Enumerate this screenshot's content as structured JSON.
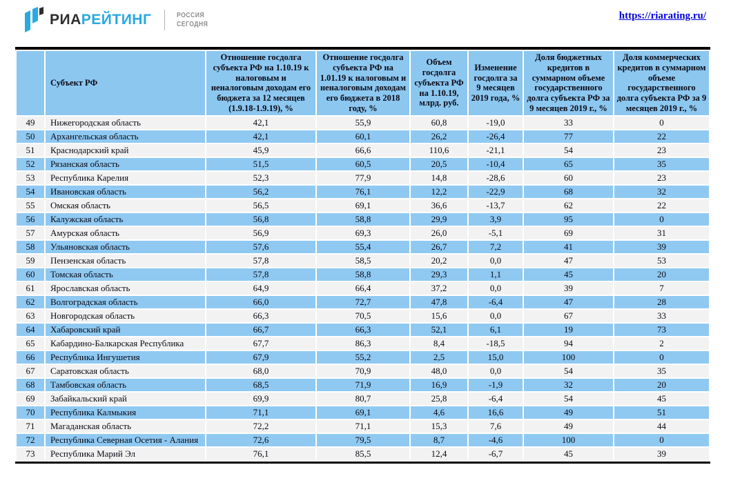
{
  "page": {
    "link": "https://riarating.ru/"
  },
  "logo": {
    "brand_prefix": "РИА",
    "brand_suffix": "РЕЙТИНГ",
    "agency_line1": "РОССИЯ",
    "agency_line2": "СЕГОДНЯ"
  },
  "colors": {
    "header_bg": "#8cc7f0",
    "row_even_bg": "#8fc9f2",
    "row_odd_bg": "#f2f2f2",
    "logo_blue": "#29a9e0",
    "logo_dark": "#2e2e2e",
    "agency_gray": "#8c8c8c",
    "link_blue": "#0000dd",
    "text_dark": "#0a0a14"
  },
  "table": {
    "columns": [
      "",
      "Субъект РФ",
      "Отношение госдолга субъекта РФ на 1.10.19 к налоговым и неналоговым доходам его бюджета за 12 месяцев (1.9.18-1.9.19), %",
      "Отношение госдолга субъекта РФ на 1.01.19 к налоговым и неналоговым доходам его бюджета в 2018 году, %",
      "Объем госдолга субъекта РФ на 1.10.19, млрд. руб.",
      "Изменение госдолга за 9 месяцев 2019 года, %",
      "Доля бюджетных кредитов в суммарном объеме государственного долга субъекта РФ за 9 месяцев 2019 г., %",
      "Доля коммерческих кредитов в суммарном объеме государственного долга субъекта РФ за 9 месяцев 2019 г., %"
    ],
    "rows": [
      [
        "49",
        "Нижегородская область",
        "42,1",
        "55,9",
        "60,8",
        "-19,0",
        "33",
        "0"
      ],
      [
        "50",
        "Архангельская область",
        "42,1",
        "60,1",
        "26,2",
        "-26,4",
        "77",
        "22"
      ],
      [
        "51",
        "Краснодарский край",
        "45,9",
        "66,6",
        "110,6",
        "-21,1",
        "54",
        "23"
      ],
      [
        "52",
        "Рязанская область",
        "51,5",
        "60,5",
        "20,5",
        "-10,4",
        "65",
        "35"
      ],
      [
        "53",
        "Республика Карелия",
        "52,3",
        "77,9",
        "14,8",
        "-28,6",
        "60",
        "23"
      ],
      [
        "54",
        "Ивановская область",
        "56,2",
        "76,1",
        "12,2",
        "-22,9",
        "68",
        "32"
      ],
      [
        "55",
        "Омская область",
        "56,5",
        "69,1",
        "36,6",
        "-13,7",
        "62",
        "22"
      ],
      [
        "56",
        "Калужская область",
        "56,8",
        "58,8",
        "29,9",
        "3,9",
        "95",
        "0"
      ],
      [
        "57",
        "Амурская область",
        "56,9",
        "69,3",
        "26,0",
        "-5,1",
        "69",
        "31"
      ],
      [
        "58",
        "Ульяновская область",
        "57,6",
        "55,4",
        "26,7",
        "7,2",
        "41",
        "39"
      ],
      [
        "59",
        "Пензенская область",
        "57,8",
        "58,5",
        "20,2",
        "0,0",
        "47",
        "53"
      ],
      [
        "60",
        "Томская область",
        "57,8",
        "58,8",
        "29,3",
        "1,1",
        "45",
        "20"
      ],
      [
        "61",
        "Ярославская область",
        "64,9",
        "66,4",
        "37,2",
        "0,0",
        "39",
        "7"
      ],
      [
        "62",
        "Волгоградская область",
        "66,0",
        "72,7",
        "47,8",
        "-6,4",
        "47",
        "28"
      ],
      [
        "63",
        "Новгородская область",
        "66,3",
        "70,5",
        "15,6",
        "0,0",
        "67",
        "33"
      ],
      [
        "64",
        "Хабаровский край",
        "66,7",
        "66,3",
        "52,1",
        "6,1",
        "19",
        "73"
      ],
      [
        "65",
        "Кабардино-Балкарская Республика",
        "67,7",
        "86,3",
        "8,4",
        "-18,5",
        "94",
        "2"
      ],
      [
        "66",
        "Республика Ингушетия",
        "67,9",
        "55,2",
        "2,5",
        "15,0",
        "100",
        "0"
      ],
      [
        "67",
        "Саратовская область",
        "68,0",
        "70,9",
        "48,0",
        "0,0",
        "54",
        "35"
      ],
      [
        "68",
        "Тамбовская область",
        "68,5",
        "71,9",
        "16,9",
        "-1,9",
        "32",
        "20"
      ],
      [
        "69",
        "Забайкальский край",
        "69,9",
        "80,7",
        "25,8",
        "-6,4",
        "54",
        "45"
      ],
      [
        "70",
        "Республика Калмыкия",
        "71,1",
        "69,1",
        "4,6",
        "16,6",
        "49",
        "51"
      ],
      [
        "71",
        "Магаданская область",
        "72,2",
        "71,1",
        "15,3",
        "7,6",
        "49",
        "44"
      ],
      [
        "72",
        "Республика Северная Осетия - Алания",
        "72,6",
        "79,5",
        "8,7",
        "-4,6",
        "100",
        "0"
      ],
      [
        "73",
        "Республика Марий Эл",
        "76,1",
        "85,5",
        "12,4",
        "-6,7",
        "45",
        "39"
      ]
    ]
  }
}
